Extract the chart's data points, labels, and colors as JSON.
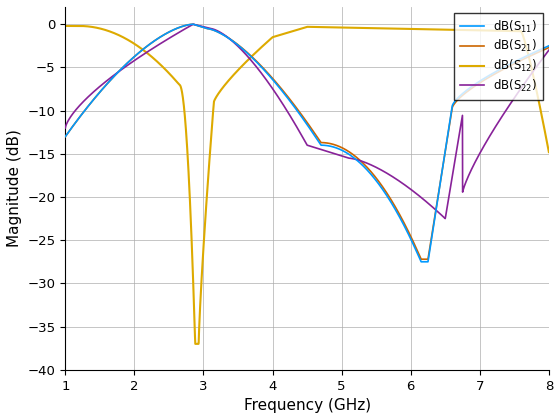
{
  "xlabel": "Frequency (GHz)",
  "ylabel": "Magnitude (dB)",
  "xlim": [
    1,
    8
  ],
  "ylim": [
    -40,
    2
  ],
  "yticks": [
    0,
    -5,
    -10,
    -15,
    -20,
    -25,
    -30,
    -35,
    -40
  ],
  "xticks": [
    1,
    2,
    3,
    4,
    5,
    6,
    7,
    8
  ],
  "colors": {
    "S11": "#0099FF",
    "S21": "#CC6600",
    "S12": "#DDAA00",
    "S22": "#882299"
  }
}
